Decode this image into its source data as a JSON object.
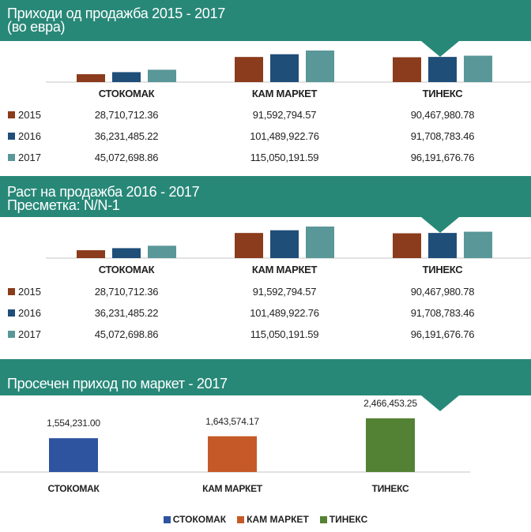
{
  "chart_data": [
    {
      "type": "bar",
      "title": "Приходи од продажба 2015 - 2017",
      "subtitle": "(во евра)",
      "categories": [
        "СТОКОМАК",
        "КАМ МАРКЕТ",
        "ТИНЕКС"
      ],
      "series": [
        {
          "name": "2015",
          "color": "#8b3c1c",
          "values": [
            28710712.36,
            91592794.57,
            90467980.78
          ],
          "labels": [
            "28,710,712.36",
            "91,592,794.57",
            "90,467,980.78"
          ]
        },
        {
          "name": "2016",
          "color": "#1f4e79",
          "values": [
            36231485.22,
            101489922.76,
            91708783.46
          ],
          "labels": [
            "36,231,485.22",
            "101,489,922.76",
            "91,708,783.46"
          ]
        },
        {
          "name": "2017",
          "color": "#5a9798",
          "values": [
            45072698.86,
            115050191.59,
            96191676.76
          ],
          "labels": [
            "45,072,698.86",
            "115,050,191.59",
            "96,191,676.76"
          ]
        }
      ]
    },
    {
      "type": "bar",
      "title": "Раст на продажба 2016 - 2017",
      "subtitle": "Пресметка: N/N-1",
      "categories": [
        "СТОКОМАК",
        "КАМ МАРКЕТ",
        "ТИНЕКС"
      ],
      "series": [
        {
          "name": "2015",
          "color": "#8b3c1c",
          "values": [
            28710712.36,
            91592794.57,
            90467980.78
          ],
          "labels": [
            "28,710,712.36",
            "91,592,794.57",
            "90,467,980.78"
          ]
        },
        {
          "name": "2016",
          "color": "#1f4e79",
          "values": [
            36231485.22,
            101489922.76,
            91708783.46
          ],
          "labels": [
            "36,231,485.22",
            "101,489,922.76",
            "91,708,783.46"
          ]
        },
        {
          "name": "2017",
          "color": "#5a9798",
          "values": [
            45072698.86,
            115050191.59,
            96191676.76
          ],
          "labels": [
            "45,072,698.86",
            "115,050,191.59",
            "96,191,676.76"
          ]
        }
      ]
    },
    {
      "type": "bar",
      "title": "Просечен приход по маркет  - 2017",
      "categories": [
        "СТОКОМАК",
        "КАМ МАРКЕТ",
        "ТИНЕКС"
      ],
      "values": [
        1554231.0,
        1643574.17,
        2466453.25
      ],
      "labels": [
        "1,554,231.00",
        "1,643,574.17",
        "2,466,453.25"
      ],
      "colors": [
        "#2e54a0",
        "#c55a28",
        "#548235"
      ],
      "legend": "bottom"
    }
  ]
}
